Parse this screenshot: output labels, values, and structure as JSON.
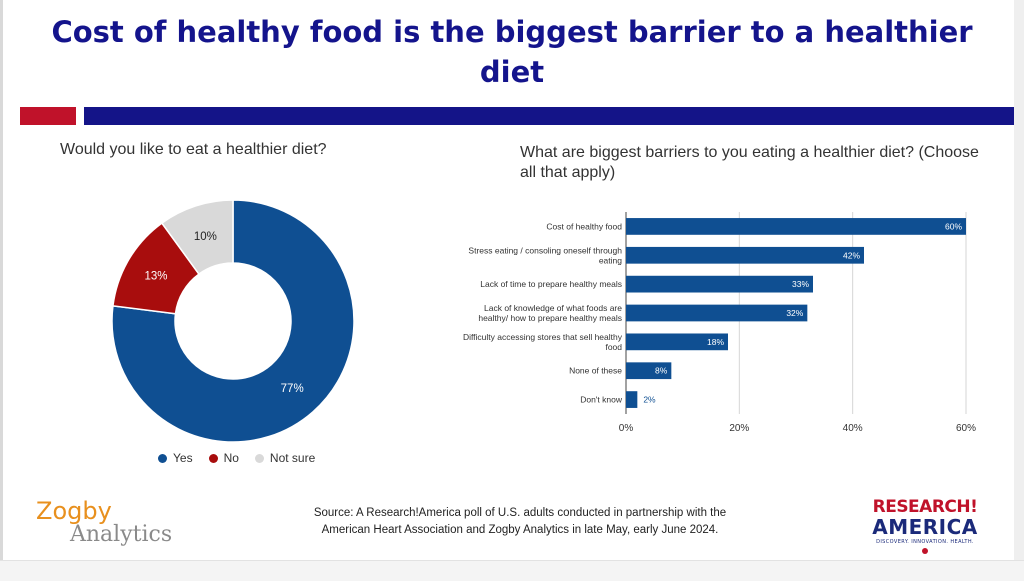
{
  "title": "Cost of healthy food is the biggest barrier to a healthier diet",
  "colors": {
    "title": "#14148c",
    "accent_red": "#c0122a",
    "accent_blue": "#141488"
  },
  "chart_data": [
    {
      "type": "pie",
      "title": "Would you like to eat a healthier diet?",
      "categories": [
        "Yes",
        "No",
        "Not sure"
      ],
      "values": [
        77,
        13,
        10
      ],
      "labels": [
        "77%",
        "13%",
        "10%"
      ],
      "colors": [
        "#0f4f92",
        "#a80d0d",
        "#d9d9d9"
      ],
      "legend_position": "bottom"
    },
    {
      "type": "bar",
      "orientation": "horizontal",
      "title": "What are biggest barriers to you eating a healthier diet? (Choose all that apply)",
      "categories": [
        [
          "Cost of healthy food"
        ],
        [
          "Stress eating / consoling oneself through",
          "eating"
        ],
        [
          "Lack of time to prepare healthy meals"
        ],
        [
          "Lack of knowledge of what foods are",
          "healthy/ how to prepare healthy meals"
        ],
        [
          "Difficulty accessing stores that sell healthy",
          "food"
        ],
        [
          "None of these"
        ],
        [
          "Don't know"
        ]
      ],
      "values": [
        60,
        42,
        33,
        32,
        18,
        8,
        2
      ],
      "labels": [
        "60%",
        "42%",
        "33%",
        "32%",
        "18%",
        "8%",
        "2%"
      ],
      "xlim": [
        0,
        60
      ],
      "xticks": [
        "0%",
        "20%",
        "40%",
        "60%"
      ],
      "xtick_values": [
        0,
        20,
        40,
        60
      ],
      "color": "#0f4f92"
    }
  ],
  "footer": {
    "zogby_line1": "Zogby",
    "zogby_line2": "Analytics",
    "source_line1": "Source: A Research!America poll of U.S. adults conducted in partnership with the",
    "source_line2": "American Heart Association and Zogby Analytics in late May, early June 2024.",
    "ra_line1": "RESEARCH!",
    "ra_line2": "AMERICA",
    "ra_tagline": "DISCOVERY. INNOVATION. HEALTH."
  }
}
